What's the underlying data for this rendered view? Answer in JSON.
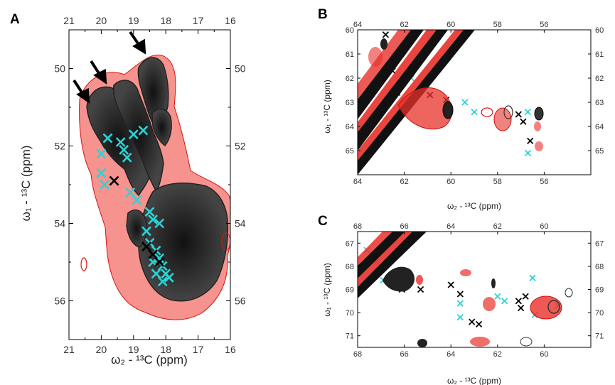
{
  "chart_data": [
    {
      "panel": "A",
      "type": "scatter",
      "xlabel": "ω₂ - ¹³C  (ppm)",
      "ylabel": "ω₁ - ¹³C  (ppm)",
      "xlim": [
        21,
        16
      ],
      "ylim": [
        49,
        57
      ],
      "xticks": [
        "21",
        "20",
        "19",
        "18",
        "17",
        "16"
      ],
      "yticks": [
        "50",
        "52",
        "54",
        "56"
      ],
      "series": [
        {
          "color": "#2ad4d8",
          "points": [
            [
              19.8,
              51.8
            ],
            [
              20.0,
              52.2
            ],
            [
              19.4,
              51.9
            ],
            [
              19.3,
              52.1
            ],
            [
              19.2,
              52.3
            ],
            [
              19.0,
              51.7
            ],
            [
              18.7,
              51.6
            ],
            [
              20.0,
              52.7
            ],
            [
              19.9,
              53.0
            ],
            [
              19.1,
              53.2
            ],
            [
              18.9,
              53.4
            ],
            [
              18.5,
              53.7
            ],
            [
              18.4,
              53.9
            ],
            [
              18.2,
              54.0
            ],
            [
              18.6,
              54.2
            ],
            [
              18.5,
              54.5
            ],
            [
              18.3,
              54.7
            ],
            [
              18.2,
              54.9
            ],
            [
              18.4,
              55.0
            ],
            [
              18.1,
              55.1
            ],
            [
              18.3,
              55.3
            ],
            [
              18.0,
              55.3
            ],
            [
              17.9,
              55.4
            ],
            [
              18.1,
              55.5
            ]
          ]
        },
        {
          "color": "#000000",
          "points": [
            [
              19.6,
              52.9
            ],
            [
              18.6,
              54.6
            ],
            [
              18.4,
              54.8
            ],
            [
              18.2,
              55.0
            ]
          ]
        }
      ],
      "arrows": 3
    },
    {
      "panel": "B",
      "type": "scatter",
      "xlabel": "ω₂ - ¹³C  (ppm)",
      "ylabel": "ω₁ - ¹³C  (ppm)",
      "xlim": [
        64,
        54
      ],
      "ylim": [
        60,
        66
      ],
      "xticks": [
        "64",
        "62",
        "60",
        "58",
        "56"
      ],
      "yticks": [
        "60",
        "61",
        "62",
        "63",
        "64",
        "65"
      ],
      "series": [
        {
          "color": "#2ad4d8",
          "points": [
            [
              61.7,
              62.0
            ],
            [
              59.4,
              63.0
            ],
            [
              59.0,
              63.4
            ],
            [
              56.7,
              63.4
            ],
            [
              56.7,
              65.1
            ]
          ]
        },
        {
          "color": "#000000",
          "points": [
            [
              62.8,
              60.2
            ],
            [
              62.5,
              61.7
            ],
            [
              62.3,
              62.6
            ],
            [
              60.9,
              62.7
            ],
            [
              60.2,
              62.9
            ],
            [
              57.1,
              63.5
            ],
            [
              56.9,
              63.8
            ],
            [
              56.6,
              64.6
            ]
          ]
        }
      ]
    },
    {
      "panel": "C",
      "type": "scatter",
      "xlabel": "ω₂ - ¹³C  (ppm)",
      "ylabel": "ω₁ - ¹³C  (ppm)",
      "xlim": [
        68,
        58
      ],
      "ylim": [
        66.5,
        71.5
      ],
      "xticks": [
        "68",
        "66",
        "64",
        "62",
        "60"
      ],
      "yticks": [
        "67",
        "68",
        "69",
        "70",
        "71"
      ],
      "series": [
        {
          "color": "#2ad4d8",
          "points": [
            [
              67.6,
              67.3
            ],
            [
              67.2,
              67.8
            ],
            [
              67.3,
              68.4
            ],
            [
              66.9,
              68.6
            ],
            [
              63.6,
              69.6
            ],
            [
              63.6,
              70.2
            ],
            [
              62.0,
              69.3
            ],
            [
              61.7,
              69.5
            ],
            [
              60.5,
              68.5
            ],
            [
              60.4,
              70.1
            ],
            [
              59.4,
              69.7
            ]
          ]
        },
        {
          "color": "#000000",
          "points": [
            [
              66.1,
              69.0
            ],
            [
              65.3,
              69.0
            ],
            [
              64.0,
              68.8
            ],
            [
              63.6,
              69.2
            ],
            [
              63.1,
              70.4
            ],
            [
              62.8,
              70.5
            ],
            [
              61.1,
              69.5
            ],
            [
              61.0,
              69.8
            ],
            [
              60.8,
              69.3
            ]
          ]
        }
      ]
    }
  ]
}
